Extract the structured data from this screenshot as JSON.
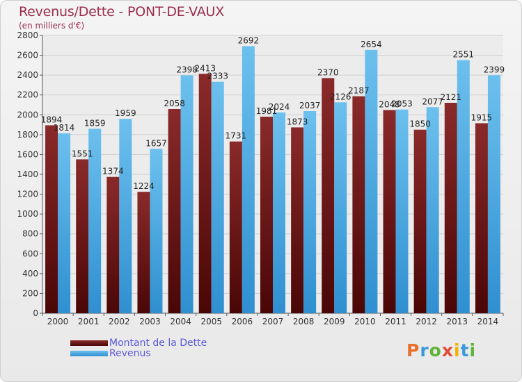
{
  "title": "Revenus/Dette - PONT-DE-VAUX",
  "subtitle": "(en milliers d'€)",
  "logo": {
    "text": "Proxiti"
  },
  "colors": {
    "debt_top": "#8a2a2a",
    "debt_bottom": "#4a0606",
    "rev_top": "#6cc0ee",
    "rev_bottom": "#2f8fd0"
  },
  "chart_data": {
    "type": "bar",
    "categories": [
      "2000",
      "2001",
      "2002",
      "2003",
      "2004",
      "2005",
      "2006",
      "2007",
      "2008",
      "2009",
      "2010",
      "2011",
      "2012",
      "2013",
      "2014"
    ],
    "series": [
      {
        "name": "Montant de la Dette",
        "values": [
          1894,
          1551,
          1374,
          1224,
          2058,
          2413,
          1731,
          1981,
          1873,
          2370,
          2187,
          2048,
          1850,
          2121,
          1915
        ],
        "labels": [
          "1894",
          "1551",
          "1374",
          "1224",
          "2058",
          "2413",
          "1731",
          "1981",
          "1873",
          "2370",
          "2187",
          "2048",
          "1850",
          "2121",
          "1915"
        ]
      },
      {
        "name": "Revenus",
        "values": [
          1814,
          1859,
          1959,
          1657,
          2398,
          2333,
          2692,
          2024,
          2037,
          2126,
          2654,
          2053,
          2077,
          2551,
          2399
        ],
        "labels": [
          "1814",
          "1859",
          "1959",
          "1657",
          "2398",
          "2333",
          "2692",
          "2024",
          "2037",
          "2126",
          "2654",
          "2053",
          "2077",
          "2551",
          "2399"
        ]
      }
    ],
    "yticks": [
      "0",
      "200",
      "400",
      "600",
      "800",
      "1000",
      "1200",
      "1400",
      "1600",
      "1800",
      "2000",
      "2200",
      "2400",
      "2600",
      "2800"
    ],
    "ylim": [
      0,
      2800
    ],
    "grid": true,
    "legend_position": "bottom-left"
  }
}
